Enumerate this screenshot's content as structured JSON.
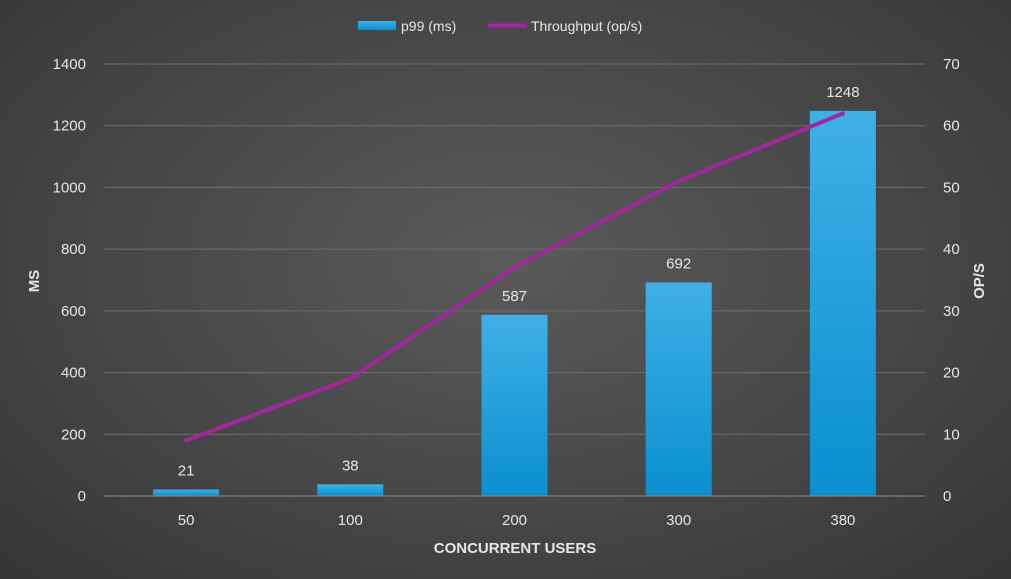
{
  "chart_data": {
    "type": "bar",
    "categories": [
      "50",
      "100",
      "200",
      "300",
      "380"
    ],
    "series": [
      {
        "name": "p99 (ms)",
        "type": "bar",
        "axis": "left",
        "values": [
          21,
          38,
          587,
          692,
          1248
        ],
        "color": "#1ba1e2"
      },
      {
        "name": "Throughput (op/s)",
        "type": "line",
        "axis": "right",
        "values": [
          9,
          19,
          37,
          51,
          62
        ],
        "color": "#a0289b"
      }
    ],
    "xlabel": "CONCURRENT USERS",
    "ylabel": "MS",
    "y2label": "OP/S",
    "ylim": [
      0,
      1400
    ],
    "y2lim": [
      0,
      70
    ],
    "yticks": [
      "0",
      "200",
      "400",
      "600",
      "800",
      "1000",
      "1200",
      "1400"
    ],
    "y2ticks": [
      "0",
      "10",
      "20",
      "30",
      "40",
      "50",
      "60",
      "70"
    ],
    "grid": true,
    "legend": "top-center",
    "data_labels": [
      "21",
      "38",
      "587",
      "692",
      "1248"
    ]
  }
}
